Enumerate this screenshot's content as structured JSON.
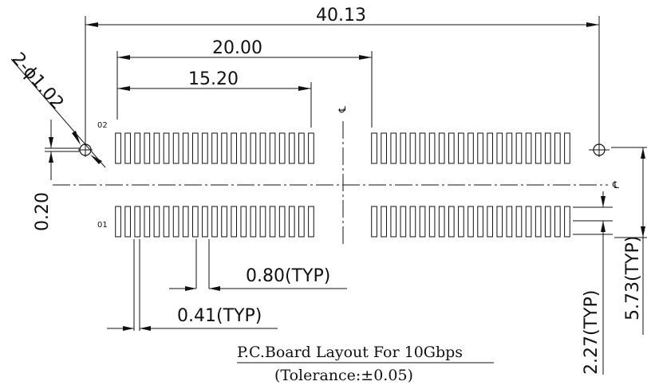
{
  "dimensions": {
    "overall_pitch": "40.13",
    "outer_span": "20.00",
    "pad_row_span": "15.20",
    "hole_callout": "2-ϕ1.02",
    "row_offset": "0.20",
    "pad_pitch": "0.80(TYP)",
    "pad_width": "0.41(TYP)",
    "row_gap": "2.27(TYP)",
    "hole_to_row": "5.73(TYP)"
  },
  "pin_labels": {
    "top_row": "02",
    "bottom_row": "01"
  },
  "center_marks": {
    "vertical": "℄",
    "horizontal": "℄"
  },
  "caption": {
    "title": "P.C.Board Layout For 10Gbps",
    "tolerance": "(Tolerance:±0.05)"
  },
  "pads": {
    "per_group": 21,
    "groups": 4
  }
}
